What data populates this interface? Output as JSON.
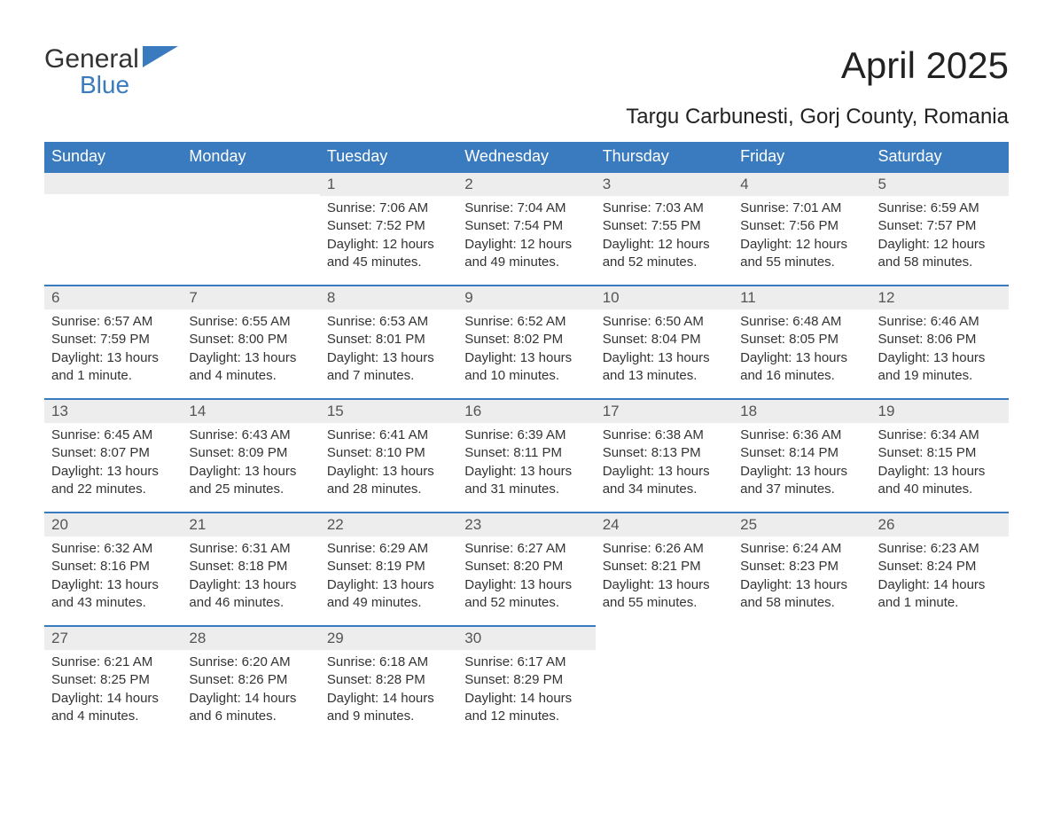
{
  "logo": {
    "text1": "General",
    "text2": "Blue"
  },
  "title": "April 2025",
  "location": "Targu Carbunesti, Gorj County, Romania",
  "colors": {
    "header_bg": "#3a7bbf",
    "header_text": "#ffffff",
    "daynum_bg": "#ededed",
    "daynum_border": "#3a7bbf",
    "text": "#333333",
    "logo_blue": "#3a7bbf"
  },
  "daynames": [
    "Sunday",
    "Monday",
    "Tuesday",
    "Wednesday",
    "Thursday",
    "Friday",
    "Saturday"
  ],
  "weeks": [
    [
      {
        "blank": true
      },
      {
        "blank": true
      },
      {
        "num": "1",
        "sunrise": "Sunrise: 7:06 AM",
        "sunset": "Sunset: 7:52 PM",
        "daylight1": "Daylight: 12 hours",
        "daylight2": "and 45 minutes."
      },
      {
        "num": "2",
        "sunrise": "Sunrise: 7:04 AM",
        "sunset": "Sunset: 7:54 PM",
        "daylight1": "Daylight: 12 hours",
        "daylight2": "and 49 minutes."
      },
      {
        "num": "3",
        "sunrise": "Sunrise: 7:03 AM",
        "sunset": "Sunset: 7:55 PM",
        "daylight1": "Daylight: 12 hours",
        "daylight2": "and 52 minutes."
      },
      {
        "num": "4",
        "sunrise": "Sunrise: 7:01 AM",
        "sunset": "Sunset: 7:56 PM",
        "daylight1": "Daylight: 12 hours",
        "daylight2": "and 55 minutes."
      },
      {
        "num": "5",
        "sunrise": "Sunrise: 6:59 AM",
        "sunset": "Sunset: 7:57 PM",
        "daylight1": "Daylight: 12 hours",
        "daylight2": "and 58 minutes."
      }
    ],
    [
      {
        "num": "6",
        "sunrise": "Sunrise: 6:57 AM",
        "sunset": "Sunset: 7:59 PM",
        "daylight1": "Daylight: 13 hours",
        "daylight2": "and 1 minute."
      },
      {
        "num": "7",
        "sunrise": "Sunrise: 6:55 AM",
        "sunset": "Sunset: 8:00 PM",
        "daylight1": "Daylight: 13 hours",
        "daylight2": "and 4 minutes."
      },
      {
        "num": "8",
        "sunrise": "Sunrise: 6:53 AM",
        "sunset": "Sunset: 8:01 PM",
        "daylight1": "Daylight: 13 hours",
        "daylight2": "and 7 minutes."
      },
      {
        "num": "9",
        "sunrise": "Sunrise: 6:52 AM",
        "sunset": "Sunset: 8:02 PM",
        "daylight1": "Daylight: 13 hours",
        "daylight2": "and 10 minutes."
      },
      {
        "num": "10",
        "sunrise": "Sunrise: 6:50 AM",
        "sunset": "Sunset: 8:04 PM",
        "daylight1": "Daylight: 13 hours",
        "daylight2": "and 13 minutes."
      },
      {
        "num": "11",
        "sunrise": "Sunrise: 6:48 AM",
        "sunset": "Sunset: 8:05 PM",
        "daylight1": "Daylight: 13 hours",
        "daylight2": "and 16 minutes."
      },
      {
        "num": "12",
        "sunrise": "Sunrise: 6:46 AM",
        "sunset": "Sunset: 8:06 PM",
        "daylight1": "Daylight: 13 hours",
        "daylight2": "and 19 minutes."
      }
    ],
    [
      {
        "num": "13",
        "sunrise": "Sunrise: 6:45 AM",
        "sunset": "Sunset: 8:07 PM",
        "daylight1": "Daylight: 13 hours",
        "daylight2": "and 22 minutes."
      },
      {
        "num": "14",
        "sunrise": "Sunrise: 6:43 AM",
        "sunset": "Sunset: 8:09 PM",
        "daylight1": "Daylight: 13 hours",
        "daylight2": "and 25 minutes."
      },
      {
        "num": "15",
        "sunrise": "Sunrise: 6:41 AM",
        "sunset": "Sunset: 8:10 PM",
        "daylight1": "Daylight: 13 hours",
        "daylight2": "and 28 minutes."
      },
      {
        "num": "16",
        "sunrise": "Sunrise: 6:39 AM",
        "sunset": "Sunset: 8:11 PM",
        "daylight1": "Daylight: 13 hours",
        "daylight2": "and 31 minutes."
      },
      {
        "num": "17",
        "sunrise": "Sunrise: 6:38 AM",
        "sunset": "Sunset: 8:13 PM",
        "daylight1": "Daylight: 13 hours",
        "daylight2": "and 34 minutes."
      },
      {
        "num": "18",
        "sunrise": "Sunrise: 6:36 AM",
        "sunset": "Sunset: 8:14 PM",
        "daylight1": "Daylight: 13 hours",
        "daylight2": "and 37 minutes."
      },
      {
        "num": "19",
        "sunrise": "Sunrise: 6:34 AM",
        "sunset": "Sunset: 8:15 PM",
        "daylight1": "Daylight: 13 hours",
        "daylight2": "and 40 minutes."
      }
    ],
    [
      {
        "num": "20",
        "sunrise": "Sunrise: 6:32 AM",
        "sunset": "Sunset: 8:16 PM",
        "daylight1": "Daylight: 13 hours",
        "daylight2": "and 43 minutes."
      },
      {
        "num": "21",
        "sunrise": "Sunrise: 6:31 AM",
        "sunset": "Sunset: 8:18 PM",
        "daylight1": "Daylight: 13 hours",
        "daylight2": "and 46 minutes."
      },
      {
        "num": "22",
        "sunrise": "Sunrise: 6:29 AM",
        "sunset": "Sunset: 8:19 PM",
        "daylight1": "Daylight: 13 hours",
        "daylight2": "and 49 minutes."
      },
      {
        "num": "23",
        "sunrise": "Sunrise: 6:27 AM",
        "sunset": "Sunset: 8:20 PM",
        "daylight1": "Daylight: 13 hours",
        "daylight2": "and 52 minutes."
      },
      {
        "num": "24",
        "sunrise": "Sunrise: 6:26 AM",
        "sunset": "Sunset: 8:21 PM",
        "daylight1": "Daylight: 13 hours",
        "daylight2": "and 55 minutes."
      },
      {
        "num": "25",
        "sunrise": "Sunrise: 6:24 AM",
        "sunset": "Sunset: 8:23 PM",
        "daylight1": "Daylight: 13 hours",
        "daylight2": "and 58 minutes."
      },
      {
        "num": "26",
        "sunrise": "Sunrise: 6:23 AM",
        "sunset": "Sunset: 8:24 PM",
        "daylight1": "Daylight: 14 hours",
        "daylight2": "and 1 minute."
      }
    ],
    [
      {
        "num": "27",
        "sunrise": "Sunrise: 6:21 AM",
        "sunset": "Sunset: 8:25 PM",
        "daylight1": "Daylight: 14 hours",
        "daylight2": "and 4 minutes."
      },
      {
        "num": "28",
        "sunrise": "Sunrise: 6:20 AM",
        "sunset": "Sunset: 8:26 PM",
        "daylight1": "Daylight: 14 hours",
        "daylight2": "and 6 minutes."
      },
      {
        "num": "29",
        "sunrise": "Sunrise: 6:18 AM",
        "sunset": "Sunset: 8:28 PM",
        "daylight1": "Daylight: 14 hours",
        "daylight2": "and 9 minutes."
      },
      {
        "num": "30",
        "sunrise": "Sunrise: 6:17 AM",
        "sunset": "Sunset: 8:29 PM",
        "daylight1": "Daylight: 14 hours",
        "daylight2": "and 12 minutes."
      },
      {
        "empty": true
      },
      {
        "empty": true
      },
      {
        "empty": true
      }
    ]
  ]
}
